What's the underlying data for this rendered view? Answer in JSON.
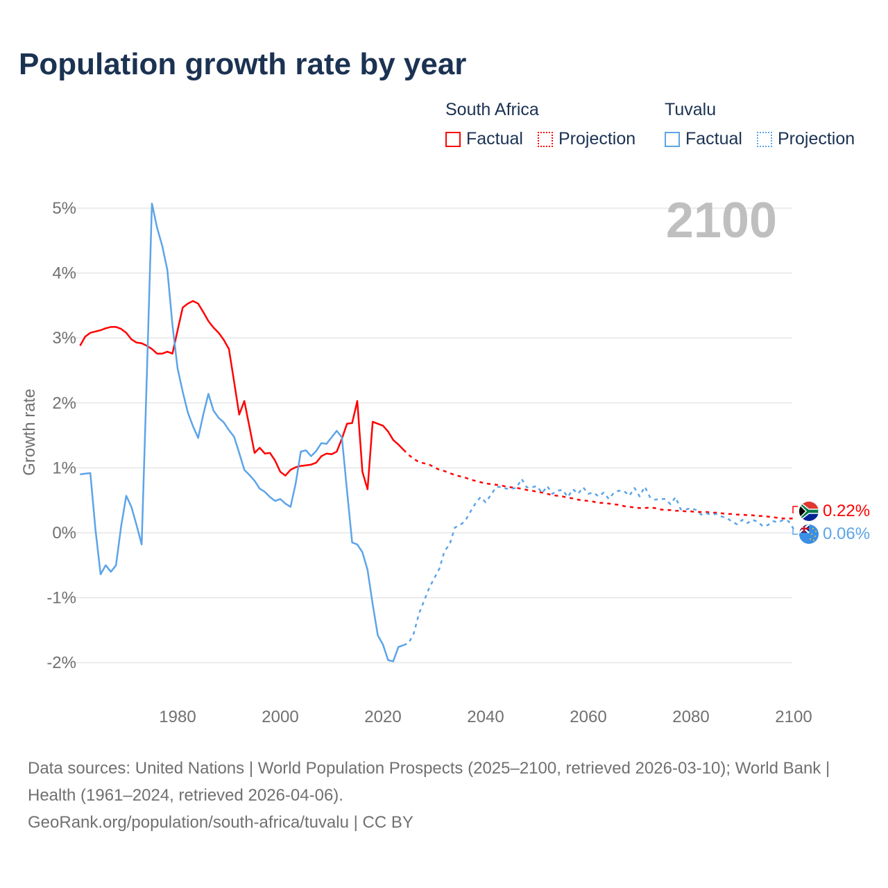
{
  "title": "Population growth rate by year",
  "legend": {
    "groups": [
      {
        "name": "South Africa",
        "color": "#ff0000",
        "factual_label": "Factual",
        "projection_label": "Projection"
      },
      {
        "name": "Tuvalu",
        "color": "#5ba4e8",
        "factual_label": "Factual",
        "projection_label": "Projection"
      }
    ]
  },
  "year_display": "2100",
  "end_labels": [
    {
      "country": "South Africa",
      "text": "0.22%",
      "flag_icon": "south-africa-flag"
    },
    {
      "country": "Tuvalu",
      "text": "0.06%",
      "flag_icon": "tuvalu-flag"
    }
  ],
  "footer": {
    "sources": "Data sources: United Nations | World Population Prospects (2025–2100, retrieved 2026-03-10); World Bank | Health (1961–2024, retrieved 2026-04-06).",
    "attribution": "GeoRank.org/population/south-africa/tuvalu | CC BY"
  },
  "chart_data": {
    "type": "line",
    "title": "Population growth rate by year",
    "xlabel": "",
    "ylabel": "Growth rate",
    "xlim": [
      1961,
      2100
    ],
    "ylim": [
      -2.4,
      5.1
    ],
    "xticks": [
      1980,
      2000,
      2020,
      2040,
      2060,
      2080,
      2100
    ],
    "xtick_labels": [
      "1980",
      "2000",
      "2020",
      "2040",
      "2060",
      "2080",
      "2100"
    ],
    "yticks": [
      -2,
      -1,
      0,
      1,
      2,
      3,
      4,
      5
    ],
    "ytick_labels": [
      "-2%",
      "-1%",
      "0%",
      "1%",
      "2%",
      "3%",
      "4%",
      "5%"
    ],
    "grid": true,
    "legend_position": "top-right",
    "series": [
      {
        "name": "South Africa (Factual)",
        "color": "#ff0000",
        "dash": false,
        "start_year": 1961,
        "values": [
          2.88,
          3.02,
          3.08,
          3.1,
          3.12,
          3.15,
          3.17,
          3.17,
          3.14,
          3.08,
          2.98,
          2.93,
          2.92,
          2.88,
          2.83,
          2.76,
          2.76,
          2.79,
          2.76,
          3.12,
          3.47,
          3.53,
          3.57,
          3.53,
          3.4,
          3.26,
          3.16,
          3.08,
          2.97,
          2.83,
          2.33,
          1.82,
          2.03,
          1.63,
          1.23,
          1.31,
          1.22,
          1.23,
          1.11,
          0.94,
          0.88,
          0.97,
          1.01,
          1.03,
          1.04,
          1.05,
          1.08,
          1.18,
          1.22,
          1.21,
          1.25,
          1.45,
          1.68,
          1.69,
          2.03,
          0.94,
          0.67,
          1.71,
          1.68,
          1.65,
          1.56,
          1.43,
          1.36,
          1.28
        ]
      },
      {
        "name": "South Africa (Projection)",
        "color": "#ff0000",
        "dash": true,
        "start_year": 2024,
        "values": [
          1.28,
          1.2,
          1.14,
          1.09,
          1.07,
          1.05,
          1.01,
          0.97,
          0.95,
          0.92,
          0.89,
          0.87,
          0.85,
          0.82,
          0.8,
          0.78,
          0.76,
          0.75,
          0.74,
          0.73,
          0.71,
          0.7,
          0.69,
          0.68,
          0.66,
          0.65,
          0.63,
          0.62,
          0.6,
          0.58,
          0.57,
          0.56,
          0.54,
          0.53,
          0.51,
          0.5,
          0.49,
          0.48,
          0.46,
          0.46,
          0.45,
          0.44,
          0.43,
          0.41,
          0.4,
          0.39,
          0.38,
          0.38,
          0.39,
          0.38,
          0.36,
          0.35,
          0.35,
          0.34,
          0.34,
          0.33,
          0.33,
          0.32,
          0.32,
          0.32,
          0.31,
          0.31,
          0.3,
          0.29,
          0.29,
          0.28,
          0.28,
          0.27,
          0.27,
          0.26,
          0.26,
          0.25,
          0.24,
          0.23,
          0.22,
          0.22,
          0.22
        ]
      },
      {
        "name": "Tuvalu (Factual)",
        "color": "#5ba4e8",
        "dash": false,
        "start_year": 1961,
        "values": [
          0.9,
          0.91,
          0.92,
          0.05,
          -0.64,
          -0.5,
          -0.6,
          -0.5,
          0.1,
          0.57,
          0.4,
          0.12,
          -0.18,
          2.4,
          5.07,
          4.7,
          4.42,
          4.05,
          3.2,
          2.53,
          2.17,
          1.85,
          1.64,
          1.46,
          1.82,
          2.14,
          1.88,
          1.77,
          1.7,
          1.58,
          1.48,
          1.23,
          0.97,
          0.89,
          0.8,
          0.68,
          0.63,
          0.55,
          0.49,
          0.52,
          0.45,
          0.4,
          0.76,
          1.25,
          1.27,
          1.18,
          1.26,
          1.38,
          1.37,
          1.47,
          1.57,
          1.47,
          0.65,
          -0.15,
          -0.18,
          -0.3,
          -0.57,
          -1.1,
          -1.58,
          -1.72,
          -1.96,
          -1.98,
          -1.76,
          -1.73
        ]
      },
      {
        "name": "Tuvalu (Projection)",
        "color": "#5ba4e8",
        "dash": true,
        "start_year": 2024,
        "values": [
          -1.73,
          -1.7,
          -1.55,
          -1.25,
          -1.05,
          -0.85,
          -0.7,
          -0.55,
          -0.28,
          -0.18,
          0.08,
          0.12,
          0.18,
          0.32,
          0.45,
          0.55,
          0.47,
          0.58,
          0.7,
          0.71,
          0.68,
          0.68,
          0.69,
          0.83,
          0.7,
          0.7,
          0.72,
          0.61,
          0.72,
          0.6,
          0.65,
          0.66,
          0.55,
          0.67,
          0.6,
          0.7,
          0.6,
          0.62,
          0.56,
          0.62,
          0.52,
          0.62,
          0.65,
          0.64,
          0.57,
          0.69,
          0.56,
          0.71,
          0.55,
          0.51,
          0.52,
          0.52,
          0.44,
          0.55,
          0.36,
          0.36,
          0.38,
          0.35,
          0.28,
          0.3,
          0.28,
          0.29,
          0.25,
          0.23,
          0.17,
          0.13,
          0.2,
          0.15,
          0.2,
          0.17,
          0.1,
          0.12,
          0.18,
          0.16,
          0.2,
          0.18,
          0.06
        ]
      }
    ]
  }
}
